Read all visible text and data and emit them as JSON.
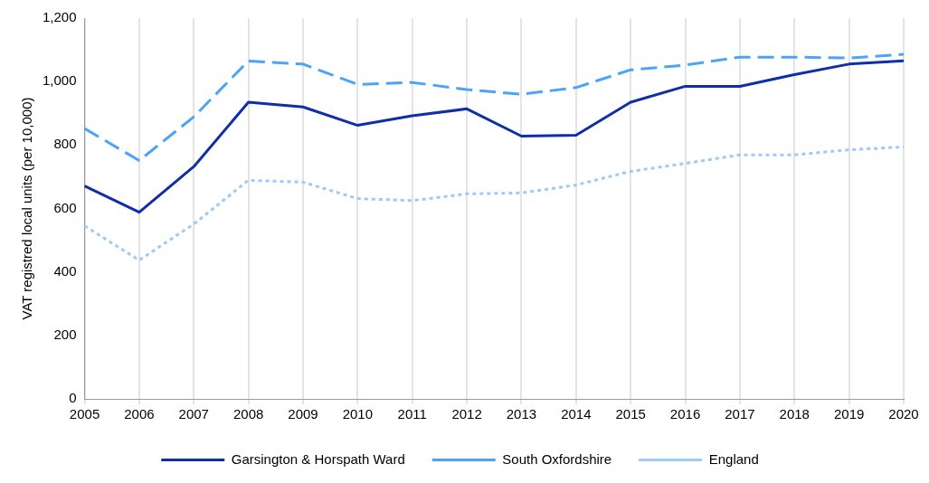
{
  "chart_data": {
    "type": "line",
    "ylabel": "VAT registred local units (per 10,000)",
    "categories": [
      "2005",
      "2006",
      "2007",
      "2008",
      "2009",
      "2010",
      "2011",
      "2012",
      "2013",
      "2014",
      "2015",
      "2016",
      "2017",
      "2018",
      "2019",
      "2020"
    ],
    "series": [
      {
        "name": "Garsington & Horspath Ward",
        "color": "#0f2fa8",
        "line_style": "solid",
        "values": [
          671,
          588,
          732,
          935,
          920,
          862,
          892,
          914,
          828,
          831,
          935,
          985,
          985,
          1022,
          1055,
          1065
        ]
      },
      {
        "name": "South Oxfordshire",
        "color": "#4da3f5",
        "line_style": "dashed",
        "values": [
          852,
          751,
          889,
          1065,
          1055,
          991,
          997,
          975,
          960,
          981,
          1037,
          1052,
          1077,
          1077,
          1074,
          1086
        ]
      },
      {
        "name": "England",
        "color": "#9fcaf5",
        "line_style": "dotted",
        "values": [
          545,
          437,
          551,
          689,
          683,
          631,
          625,
          646,
          649,
          674,
          717,
          742,
          769,
          769,
          785,
          794
        ]
      }
    ],
    "ylim": [
      0,
      1200
    ],
    "yticks": [
      0,
      200,
      400,
      600,
      800,
      {
        "value": 1000,
        "label": "1,000"
      },
      {
        "value": 1200,
        "label": "1,200"
      }
    ],
    "grid": "x",
    "legend": "bottom",
    "marker": "none"
  }
}
